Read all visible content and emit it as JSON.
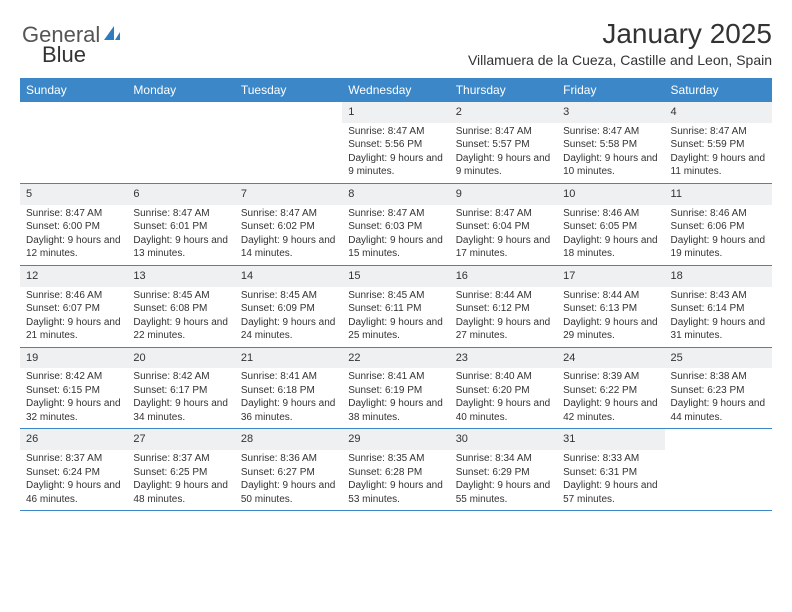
{
  "logo": {
    "text1": "General",
    "text2": "Blue"
  },
  "header": {
    "title": "January 2025",
    "subtitle": "Villamuera de la Cueza, Castille and Leon, Spain"
  },
  "colors": {
    "header_bg": "#3b87c8",
    "header_text": "#ffffff",
    "daynum_bg": "#eef0f2",
    "border": "#3b87c8",
    "text": "#333333",
    "logo_accent": "#2f7bbf"
  },
  "dayNames": [
    "Sunday",
    "Monday",
    "Tuesday",
    "Wednesday",
    "Thursday",
    "Friday",
    "Saturday"
  ],
  "weeks": [
    [
      {
        "empty": true
      },
      {
        "empty": true
      },
      {
        "empty": true
      },
      {
        "day": "1",
        "sunrise": "Sunrise: 8:47 AM",
        "sunset": "Sunset: 5:56 PM",
        "daylight": "Daylight: 9 hours and 9 minutes."
      },
      {
        "day": "2",
        "sunrise": "Sunrise: 8:47 AM",
        "sunset": "Sunset: 5:57 PM",
        "daylight": "Daylight: 9 hours and 9 minutes."
      },
      {
        "day": "3",
        "sunrise": "Sunrise: 8:47 AM",
        "sunset": "Sunset: 5:58 PM",
        "daylight": "Daylight: 9 hours and 10 minutes."
      },
      {
        "day": "4",
        "sunrise": "Sunrise: 8:47 AM",
        "sunset": "Sunset: 5:59 PM",
        "daylight": "Daylight: 9 hours and 11 minutes."
      }
    ],
    [
      {
        "day": "5",
        "sunrise": "Sunrise: 8:47 AM",
        "sunset": "Sunset: 6:00 PM",
        "daylight": "Daylight: 9 hours and 12 minutes."
      },
      {
        "day": "6",
        "sunrise": "Sunrise: 8:47 AM",
        "sunset": "Sunset: 6:01 PM",
        "daylight": "Daylight: 9 hours and 13 minutes."
      },
      {
        "day": "7",
        "sunrise": "Sunrise: 8:47 AM",
        "sunset": "Sunset: 6:02 PM",
        "daylight": "Daylight: 9 hours and 14 minutes."
      },
      {
        "day": "8",
        "sunrise": "Sunrise: 8:47 AM",
        "sunset": "Sunset: 6:03 PM",
        "daylight": "Daylight: 9 hours and 15 minutes."
      },
      {
        "day": "9",
        "sunrise": "Sunrise: 8:47 AM",
        "sunset": "Sunset: 6:04 PM",
        "daylight": "Daylight: 9 hours and 17 minutes."
      },
      {
        "day": "10",
        "sunrise": "Sunrise: 8:46 AM",
        "sunset": "Sunset: 6:05 PM",
        "daylight": "Daylight: 9 hours and 18 minutes."
      },
      {
        "day": "11",
        "sunrise": "Sunrise: 8:46 AM",
        "sunset": "Sunset: 6:06 PM",
        "daylight": "Daylight: 9 hours and 19 minutes."
      }
    ],
    [
      {
        "day": "12",
        "sunrise": "Sunrise: 8:46 AM",
        "sunset": "Sunset: 6:07 PM",
        "daylight": "Daylight: 9 hours and 21 minutes."
      },
      {
        "day": "13",
        "sunrise": "Sunrise: 8:45 AM",
        "sunset": "Sunset: 6:08 PM",
        "daylight": "Daylight: 9 hours and 22 minutes."
      },
      {
        "day": "14",
        "sunrise": "Sunrise: 8:45 AM",
        "sunset": "Sunset: 6:09 PM",
        "daylight": "Daylight: 9 hours and 24 minutes."
      },
      {
        "day": "15",
        "sunrise": "Sunrise: 8:45 AM",
        "sunset": "Sunset: 6:11 PM",
        "daylight": "Daylight: 9 hours and 25 minutes."
      },
      {
        "day": "16",
        "sunrise": "Sunrise: 8:44 AM",
        "sunset": "Sunset: 6:12 PM",
        "daylight": "Daylight: 9 hours and 27 minutes."
      },
      {
        "day": "17",
        "sunrise": "Sunrise: 8:44 AM",
        "sunset": "Sunset: 6:13 PM",
        "daylight": "Daylight: 9 hours and 29 minutes."
      },
      {
        "day": "18",
        "sunrise": "Sunrise: 8:43 AM",
        "sunset": "Sunset: 6:14 PM",
        "daylight": "Daylight: 9 hours and 31 minutes."
      }
    ],
    [
      {
        "day": "19",
        "sunrise": "Sunrise: 8:42 AM",
        "sunset": "Sunset: 6:15 PM",
        "daylight": "Daylight: 9 hours and 32 minutes."
      },
      {
        "day": "20",
        "sunrise": "Sunrise: 8:42 AM",
        "sunset": "Sunset: 6:17 PM",
        "daylight": "Daylight: 9 hours and 34 minutes."
      },
      {
        "day": "21",
        "sunrise": "Sunrise: 8:41 AM",
        "sunset": "Sunset: 6:18 PM",
        "daylight": "Daylight: 9 hours and 36 minutes."
      },
      {
        "day": "22",
        "sunrise": "Sunrise: 8:41 AM",
        "sunset": "Sunset: 6:19 PM",
        "daylight": "Daylight: 9 hours and 38 minutes."
      },
      {
        "day": "23",
        "sunrise": "Sunrise: 8:40 AM",
        "sunset": "Sunset: 6:20 PM",
        "daylight": "Daylight: 9 hours and 40 minutes."
      },
      {
        "day": "24",
        "sunrise": "Sunrise: 8:39 AM",
        "sunset": "Sunset: 6:22 PM",
        "daylight": "Daylight: 9 hours and 42 minutes."
      },
      {
        "day": "25",
        "sunrise": "Sunrise: 8:38 AM",
        "sunset": "Sunset: 6:23 PM",
        "daylight": "Daylight: 9 hours and 44 minutes."
      }
    ],
    [
      {
        "day": "26",
        "sunrise": "Sunrise: 8:37 AM",
        "sunset": "Sunset: 6:24 PM",
        "daylight": "Daylight: 9 hours and 46 minutes."
      },
      {
        "day": "27",
        "sunrise": "Sunrise: 8:37 AM",
        "sunset": "Sunset: 6:25 PM",
        "daylight": "Daylight: 9 hours and 48 minutes."
      },
      {
        "day": "28",
        "sunrise": "Sunrise: 8:36 AM",
        "sunset": "Sunset: 6:27 PM",
        "daylight": "Daylight: 9 hours and 50 minutes."
      },
      {
        "day": "29",
        "sunrise": "Sunrise: 8:35 AM",
        "sunset": "Sunset: 6:28 PM",
        "daylight": "Daylight: 9 hours and 53 minutes."
      },
      {
        "day": "30",
        "sunrise": "Sunrise: 8:34 AM",
        "sunset": "Sunset: 6:29 PM",
        "daylight": "Daylight: 9 hours and 55 minutes."
      },
      {
        "day": "31",
        "sunrise": "Sunrise: 8:33 AM",
        "sunset": "Sunset: 6:31 PM",
        "daylight": "Daylight: 9 hours and 57 minutes."
      },
      {
        "empty": true
      }
    ]
  ]
}
